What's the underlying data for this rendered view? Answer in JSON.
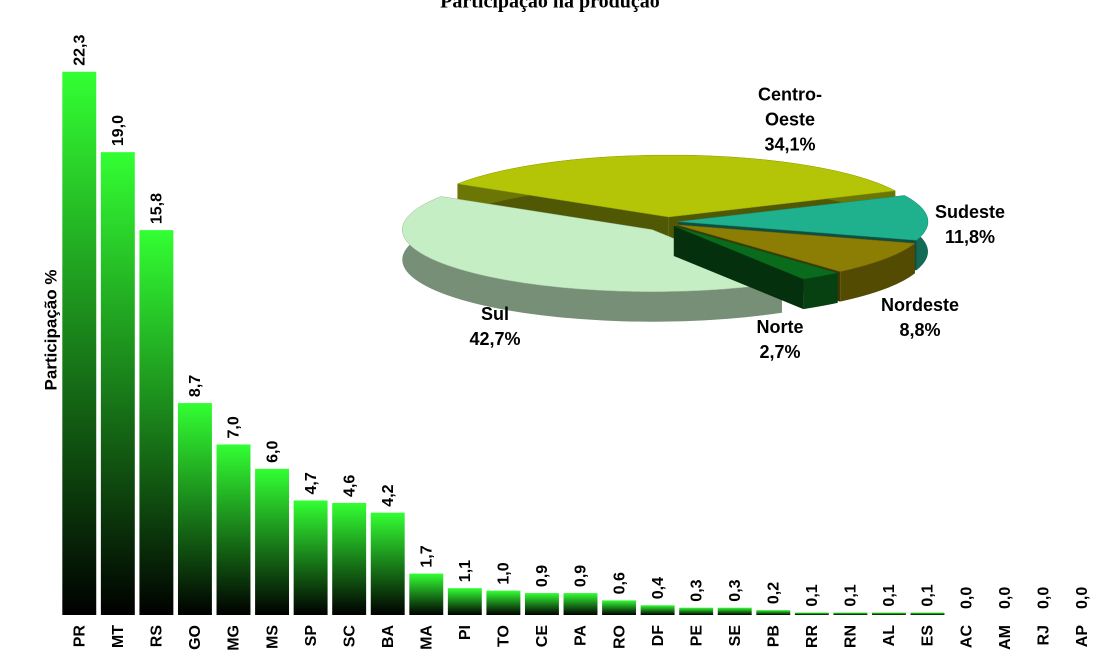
{
  "chart_data": [
    {
      "type": "bar",
      "title": "Participação na produção",
      "y_label": "Participação %",
      "categories": [
        "PR",
        "MT",
        "RS",
        "GO",
        "MG",
        "MS",
        "SP",
        "SC",
        "BA",
        "MA",
        "PI",
        "TO",
        "CE",
        "PA",
        "RO",
        "DF",
        "PE",
        "SE",
        "PB",
        "RR",
        "RN",
        "AL",
        "ES",
        "AC",
        "AM",
        "RJ",
        "AP"
      ],
      "values": [
        22.3,
        19.0,
        15.8,
        8.7,
        7.0,
        6.0,
        4.7,
        4.6,
        4.2,
        1.7,
        1.1,
        1.0,
        0.9,
        0.9,
        0.6,
        0.4,
        0.3,
        0.3,
        0.2,
        0.1,
        0.1,
        0.1,
        0.1,
        0.0,
        0.0,
        0.0,
        0.0
      ],
      "value_labels": [
        "22,3",
        "19,0",
        "15,8",
        "8,7",
        "7,0",
        "6,0",
        "4,7",
        "4,6",
        "4,2",
        "1,7",
        "1,1",
        "1,0",
        "0,9",
        "0,9",
        "0,6",
        "0,4",
        "0,3",
        "0,3",
        "0,2",
        "0,1",
        "0,1",
        "0,1",
        "0,1",
        "0,0",
        "0,0",
        "0,0",
        "0,0"
      ],
      "color": "#33ff33",
      "ylim": [
        0,
        25
      ]
    },
    {
      "type": "pie",
      "categories": [
        "Sudeste",
        "Nordeste",
        "Norte",
        "Sul",
        "Centro-Oeste"
      ],
      "values": [
        11.8,
        8.8,
        2.7,
        42.7,
        34.1
      ],
      "value_labels": [
        "11,8%",
        "8,8%",
        "2,7%",
        "42,7%",
        "34,1%"
      ],
      "colors": [
        "#1fb08e",
        "#8c7d05",
        "#0b6b1c",
        "#c6eec4",
        "#b4c406"
      ]
    }
  ]
}
